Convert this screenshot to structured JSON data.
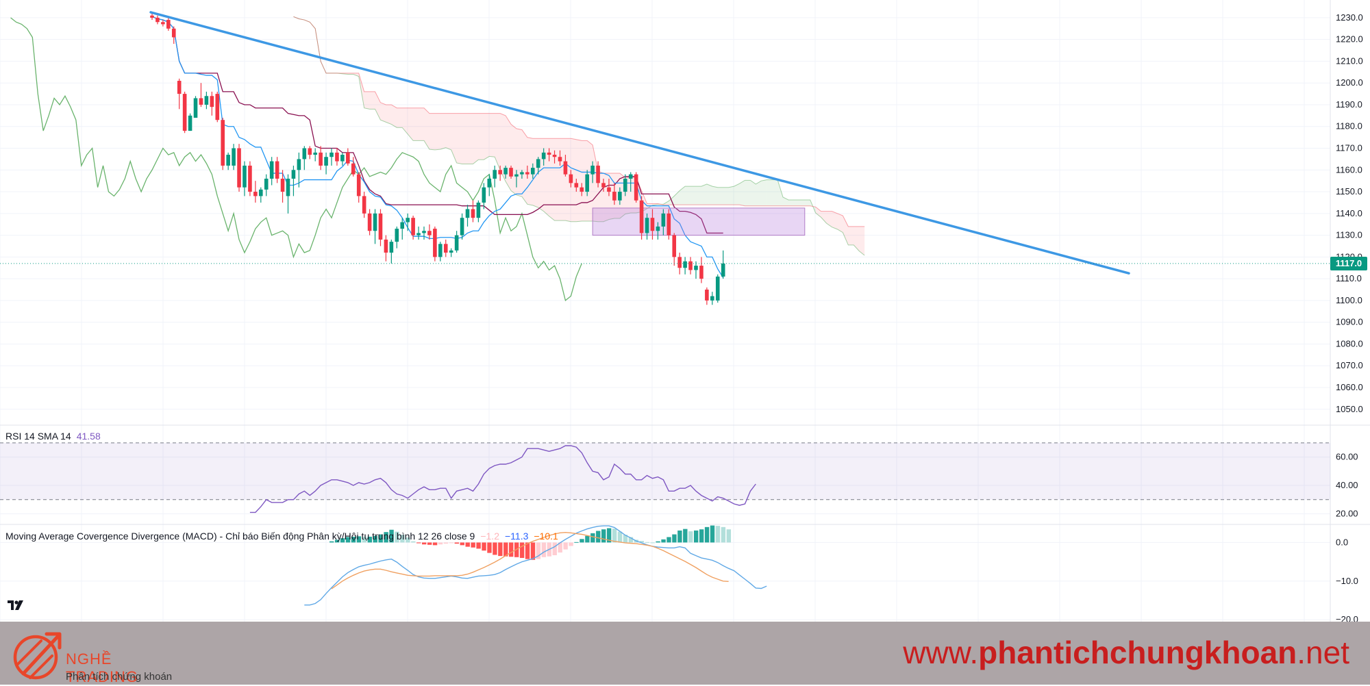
{
  "chart_data": [
    {
      "type": "candlestick",
      "name": "price",
      "ylim": [
        1043,
        1235
      ],
      "y_ticks": [
        1050,
        1060,
        1070,
        1080,
        1090,
        1100,
        1110,
        1120,
        1130,
        1140,
        1150,
        1160,
        1170,
        1180,
        1190,
        1200,
        1210,
        1220,
        1230
      ],
      "y_tick_labels": [
        "1050.0",
        "1060.0",
        "1070.0",
        "1080.0",
        "1090.0",
        "1100.0",
        "1110.0",
        "1120.0",
        "1130.0",
        "1140.0",
        "1150.0",
        "1160.0",
        "1170.0",
        "1180.0",
        "1190.0",
        "1200.0",
        "1210.0",
        "1220.0",
        "1230.0"
      ],
      "last_price": 1117.0,
      "last_price_label": "1117.0",
      "bars": [
        [
          1231,
          1232,
          1229,
          1230
        ],
        [
          1230,
          1231,
          1227,
          1228
        ],
        [
          1228,
          1229,
          1226,
          1227
        ],
        [
          1229,
          1230,
          1224,
          1225
        ],
        [
          1225,
          1226,
          1218,
          1221
        ],
        [
          1201,
          1202,
          1188,
          1195
        ],
        [
          1195,
          1196,
          1177,
          1178
        ],
        [
          1178,
          1186,
          1178,
          1185
        ],
        [
          1184,
          1194,
          1184,
          1193
        ],
        [
          1193,
          1200,
          1189,
          1190
        ],
        [
          1190,
          1196,
          1188,
          1194
        ],
        [
          1194,
          1196,
          1185,
          1189
        ],
        [
          1195,
          1196,
          1182,
          1183
        ],
        [
          1183,
          1184,
          1160,
          1162
        ],
        [
          1162,
          1168,
          1160,
          1167
        ],
        [
          1162,
          1172,
          1160,
          1170
        ],
        [
          1170,
          1172,
          1150,
          1152
        ],
        [
          1152,
          1164,
          1148,
          1162
        ],
        [
          1162,
          1164,
          1148,
          1150
        ],
        [
          1150,
          1155,
          1145,
          1148
        ],
        [
          1148,
          1152,
          1145,
          1151
        ],
        [
          1151,
          1158,
          1148,
          1156
        ],
        [
          1156,
          1166,
          1153,
          1164
        ],
        [
          1164,
          1166,
          1154,
          1156
        ],
        [
          1156,
          1160,
          1145,
          1150
        ],
        [
          1148,
          1158,
          1140,
          1156
        ],
        [
          1156,
          1162,
          1148,
          1160
        ],
        [
          1160,
          1168,
          1152,
          1165
        ],
        [
          1165,
          1171,
          1160,
          1170
        ],
        [
          1170,
          1171,
          1165,
          1167
        ],
        [
          1167,
          1170,
          1164,
          1168
        ],
        [
          1168,
          1171,
          1160,
          1162
        ],
        [
          1162,
          1168,
          1158,
          1166
        ],
        [
          1166,
          1170,
          1162,
          1168
        ],
        [
          1168,
          1170,
          1162,
          1164
        ],
        [
          1164,
          1168,
          1162,
          1167
        ],
        [
          1168,
          1170,
          1162,
          1163
        ],
        [
          1163,
          1166,
          1157,
          1158
        ],
        [
          1158,
          1159,
          1145,
          1148
        ],
        [
          1148,
          1150,
          1138,
          1140
        ],
        [
          1140,
          1142,
          1130,
          1132
        ],
        [
          1132,
          1142,
          1126,
          1140
        ],
        [
          1140,
          1142,
          1125,
          1128
        ],
        [
          1128,
          1130,
          1118,
          1122
        ],
        [
          1122,
          1128,
          1117,
          1127
        ],
        [
          1127,
          1134,
          1124,
          1133
        ],
        [
          1133,
          1138,
          1128,
          1136
        ],
        [
          1136,
          1140,
          1132,
          1138
        ],
        [
          1138,
          1139,
          1128,
          1130
        ],
        [
          1130,
          1134,
          1128,
          1131
        ],
        [
          1131,
          1134,
          1128,
          1132
        ],
        [
          1132,
          1135,
          1128,
          1130
        ],
        [
          1133,
          1134,
          1118,
          1120
        ],
        [
          1120,
          1127,
          1118,
          1126
        ],
        [
          1126,
          1128,
          1120,
          1122
        ],
        [
          1122,
          1124,
          1120,
          1123
        ],
        [
          1123,
          1132,
          1122,
          1130
        ],
        [
          1130,
          1140,
          1128,
          1138
        ],
        [
          1138,
          1144,
          1134,
          1142
        ],
        [
          1142,
          1146,
          1136,
          1138
        ],
        [
          1138,
          1146,
          1136,
          1145
        ],
        [
          1145,
          1154,
          1142,
          1152
        ],
        [
          1152,
          1158,
          1148,
          1156
        ],
        [
          1156,
          1162,
          1152,
          1160
        ],
        [
          1160,
          1162,
          1155,
          1158
        ],
        [
          1158,
          1162,
          1156,
          1161
        ],
        [
          1161,
          1162,
          1156,
          1157
        ],
        [
          1157,
          1160,
          1152,
          1158
        ],
        [
          1158,
          1160,
          1156,
          1159
        ],
        [
          1159,
          1162,
          1156,
          1158
        ],
        [
          1158,
          1163,
          1156,
          1161
        ],
        [
          1161,
          1166,
          1158,
          1165
        ],
        [
          1165,
          1170,
          1162,
          1168
        ],
        [
          1168,
          1170,
          1164,
          1167
        ],
        [
          1167,
          1169,
          1163,
          1166
        ],
        [
          1166,
          1169,
          1162,
          1164
        ],
        [
          1164,
          1167,
          1157,
          1158
        ],
        [
          1158,
          1160,
          1152,
          1154
        ],
        [
          1154,
          1156,
          1150,
          1152
        ],
        [
          1152,
          1154,
          1148,
          1150
        ],
        [
          1150,
          1160,
          1148,
          1158
        ],
        [
          1158,
          1164,
          1154,
          1162
        ],
        [
          1162,
          1164,
          1152,
          1154
        ],
        [
          1154,
          1156,
          1150,
          1152
        ],
        [
          1152,
          1156,
          1148,
          1150
        ],
        [
          1150,
          1154,
          1144,
          1146
        ],
        [
          1146,
          1152,
          1144,
          1150
        ],
        [
          1150,
          1158,
          1148,
          1156
        ],
        [
          1156,
          1159,
          1150,
          1158
        ],
        [
          1158,
          1159,
          1145,
          1146
        ],
        [
          1146,
          1148,
          1128,
          1131
        ],
        [
          1131,
          1140,
          1128,
          1138
        ],
        [
          1138,
          1142,
          1128,
          1132
        ],
        [
          1132,
          1136,
          1128,
          1134
        ],
        [
          1134,
          1142,
          1130,
          1140
        ],
        [
          1140,
          1142,
          1128,
          1130
        ],
        [
          1130,
          1131,
          1116,
          1120
        ],
        [
          1120,
          1122,
          1112,
          1115
        ],
        [
          1115,
          1120,
          1112,
          1118
        ],
        [
          1118,
          1120,
          1112,
          1114
        ],
        [
          1114,
          1118,
          1110,
          1116
        ],
        [
          1116,
          1120,
          1108,
          1110
        ],
        [
          1105,
          1106,
          1098,
          1100
        ],
        [
          1100,
          1104,
          1098,
          1102
        ],
        [
          1100,
          1112,
          1099,
          1111
        ],
        [
          1111,
          1123,
          1110,
          1117
        ]
      ]
    },
    {
      "type": "line",
      "name": "rsi",
      "title": "RSI 14 SMA 14",
      "value_label": "41.58",
      "ylim": [
        13,
        82
      ],
      "y_ticks": [
        20,
        40,
        60
      ],
      "y_tick_labels": [
        "20.00",
        "40.00",
        "60.00"
      ],
      "levels": [
        30,
        70
      ],
      "start_index": 18,
      "values": [
        21,
        21,
        25,
        30,
        28,
        28,
        28,
        30,
        30,
        34,
        36,
        33,
        36,
        40,
        42,
        44,
        44,
        43,
        42,
        40,
        42,
        41,
        42,
        44,
        45,
        42,
        37,
        34,
        33,
        31,
        34,
        37,
        39,
        37,
        37,
        38,
        38,
        31,
        36,
        37,
        38,
        36,
        41,
        48,
        52,
        54,
        55,
        55,
        56,
        58,
        60,
        66,
        66,
        66,
        65,
        64,
        65,
        66,
        68,
        68,
        67,
        63,
        56,
        50,
        49,
        44,
        46,
        55,
        52,
        48,
        48,
        44,
        44,
        47,
        45,
        46,
        44,
        36,
        36,
        38,
        38,
        40,
        36,
        33,
        31,
        29,
        32,
        31,
        29,
        27,
        26,
        27,
        36,
        41
      ]
    },
    {
      "type": "line",
      "name": "macd",
      "title": "Moving Average Covergence Divergence (MACD) - Chỉ báo Biến động Phân kỳ/Hội tụ trung bình 12 26 close 9",
      "value_labels": [
        "−1.2",
        "−11.3",
        "−10.1"
      ],
      "ylim": [
        -20.5,
        4.5
      ],
      "y_ticks": [
        -20,
        -10,
        0
      ],
      "y_tick_labels": [
        "−20.0",
        "−10.0",
        "0.0"
      ],
      "series": [
        {
          "role": "macd",
          "start_index": 28,
          "values": [
            -16.2,
            -16.2,
            -15.8,
            -14.8,
            -13.2,
            -11.7,
            -10.3,
            -8.9,
            -7.8,
            -7.0,
            -6.3,
            -5.9,
            -5.6,
            -5.2,
            -4.8,
            -4.5,
            -4.3,
            -5.1,
            -6.2,
            -7.2,
            -8.3,
            -8.9,
            -9.2,
            -9.3,
            -9.3,
            -9.1,
            -8.9,
            -8.7,
            -8.9,
            -9.2,
            -9.3,
            -9.0,
            -8.7,
            -8.6,
            -8.5,
            -8.3,
            -7.8,
            -7.0,
            -6.3,
            -5.6,
            -5.0,
            -4.6,
            -4.2,
            -3.5,
            -2.5,
            -1.8,
            -1.1,
            -0.1,
            0.8,
            1.6,
            2.4,
            3.0,
            3.5,
            3.9,
            4.2,
            4.3,
            4.3,
            3.9,
            2.9,
            1.9,
            1.2,
            0.4,
            -0.1,
            -0.6,
            -1.0,
            -1.2,
            -1.3,
            -1.4,
            -1.4,
            -1.1,
            -1.4,
            -2.8,
            -3.4,
            -4.0,
            -4.3,
            -4.6,
            -5.2,
            -6.0,
            -6.7,
            -7.3,
            -8.4,
            -9.5,
            -10.6,
            -11.8,
            -11.9,
            -11.3
          ]
        },
        {
          "role": "signal",
          "start_index": 33,
          "values": [
            -12.0,
            -11.0,
            -10.0,
            -9.2,
            -8.5,
            -7.9,
            -7.4,
            -7.1,
            -6.9,
            -6.9,
            -7.2,
            -7.6,
            -7.9,
            -8.2,
            -8.5,
            -8.6,
            -8.7,
            -8.7,
            -8.7,
            -8.6,
            -8.6,
            -8.6,
            -8.6,
            -8.6,
            -8.5,
            -8.2,
            -7.7,
            -7.1,
            -6.5,
            -5.8,
            -5.1,
            -4.3,
            -3.4,
            -2.6,
            -1.8,
            -1.0,
            -0.3,
            0.3,
            0.8,
            1.3,
            1.8,
            2.2,
            2.5,
            2.6,
            2.5,
            2.3,
            2.1,
            1.8,
            1.5,
            1.2,
            0.9,
            0.6,
            0.3,
            0.1,
            -0.1,
            -0.2,
            -0.3,
            -0.5,
            -0.7,
            -1.0,
            -1.5,
            -2.1,
            -2.8,
            -3.5,
            -4.2,
            -4.9,
            -5.7,
            -6.5,
            -7.4,
            -8.3,
            -9.0,
            -9.5,
            -10.0,
            -10.1
          ]
        }
      ],
      "histogram_colors": {
        "rising_positive": "#26a69a",
        "falling_positive": "#b2dfdb",
        "rising_negative": "#ffcdd2",
        "falling_negative": "#ff5252"
      }
    }
  ],
  "colors": {
    "up": "#089981",
    "down": "#f23645",
    "trendline": "#3d98e4",
    "zone": "#c49bdb",
    "rsi": "#7e57c2",
    "macd_line": "#2962ff",
    "signal_line": "#ff6d00",
    "leading_span_a": "#43a047",
    "leading_span_b": "#f23645",
    "base_line": "#880e4f",
    "conversion_line": "#2196f3",
    "lagging_span": "#43a047"
  },
  "footer": {
    "brand_name": "NGHỀ TRADING",
    "brand_tagline": "Phân tích chứng khoán",
    "site_prefix": "www.",
    "site_bold": "phantichchungkhoan",
    "site_suffix": ".net"
  }
}
